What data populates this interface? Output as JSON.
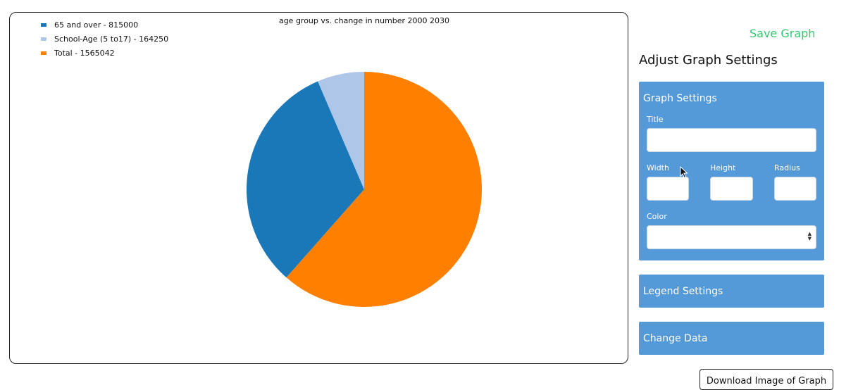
{
  "chart_data": {
    "type": "pie",
    "title": "age group vs. change in number 2000 2030",
    "legend_position": "top-left",
    "slices": [
      {
        "label": "65 and over - 815000",
        "value": 815000,
        "color": "#1a77b8"
      },
      {
        "label": "School-Age (5 to17) - 164250",
        "value": 164250,
        "color": "#aec6e8"
      },
      {
        "label": "Total - 1565042",
        "value": 1565042,
        "color": "#ff8000"
      }
    ]
  },
  "toolbar": {
    "save_label": "Save Graph",
    "download_label": "Download Image of Graph"
  },
  "settings": {
    "heading": "Adjust Graph Settings",
    "graph_panel": {
      "title": "Graph Settings",
      "title_label": "Title",
      "width_label": "Width",
      "height_label": "Height",
      "radius_label": "Radius",
      "color_label": "Color"
    },
    "legend_panel": {
      "title": "Legend Settings"
    },
    "data_panel": {
      "title": "Change Data"
    }
  }
}
